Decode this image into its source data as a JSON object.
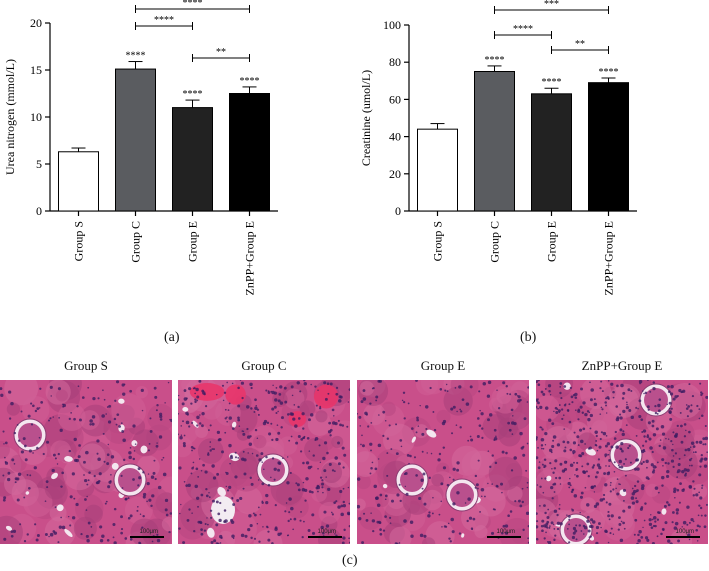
{
  "chart_data": [
    {
      "id": "a",
      "type": "bar",
      "panel_label": "(a)",
      "ylabel": "Urea nitrogen (mmol/L)",
      "ylim": [
        0,
        20
      ],
      "yticks": [
        0,
        5,
        10,
        15,
        20
      ],
      "categories": [
        "Group S",
        "Group C",
        "Group E",
        "ZnPP+Group E"
      ],
      "values": [
        6.3,
        15.1,
        11.0,
        12.5
      ],
      "errors": [
        0.4,
        0.8,
        0.8,
        0.7
      ],
      "colors": [
        "#ffffff",
        "#5a5c60",
        "#222222",
        "#000000"
      ],
      "bar_labels": [
        "",
        "****",
        "****",
        "****"
      ],
      "comparisons": [
        {
          "from": 1,
          "to": 3,
          "label": "****"
        },
        {
          "from": 1,
          "to": 2,
          "label": "****"
        },
        {
          "from": 2,
          "to": 3,
          "label": "**"
        }
      ]
    },
    {
      "id": "b",
      "type": "bar",
      "panel_label": "(b)",
      "ylabel": "Creatinine (umol/L)",
      "ylim": [
        0,
        100
      ],
      "yticks": [
        0,
        20,
        40,
        60,
        80,
        100
      ],
      "categories": [
        "Group S",
        "Group C",
        "Group E",
        "ZnPP+Group E"
      ],
      "values": [
        44,
        75,
        63,
        69
      ],
      "errors": [
        3,
        3,
        3,
        2.5
      ],
      "colors": [
        "#ffffff",
        "#5a5c60",
        "#222222",
        "#000000"
      ],
      "bar_labels": [
        "",
        "****",
        "****",
        "****"
      ],
      "comparisons": [
        {
          "from": 1,
          "to": 3,
          "label": "***"
        },
        {
          "from": 1,
          "to": 2,
          "label": "****"
        },
        {
          "from": 2,
          "to": 3,
          "label": "**"
        }
      ]
    }
  ],
  "micrographs": {
    "panel_label": "(c)",
    "scale_text": "100μm",
    "items": [
      {
        "title": "Group S"
      },
      {
        "title": "Group C"
      },
      {
        "title": "Group E"
      },
      {
        "title": "ZnPP+Group E"
      }
    ]
  }
}
